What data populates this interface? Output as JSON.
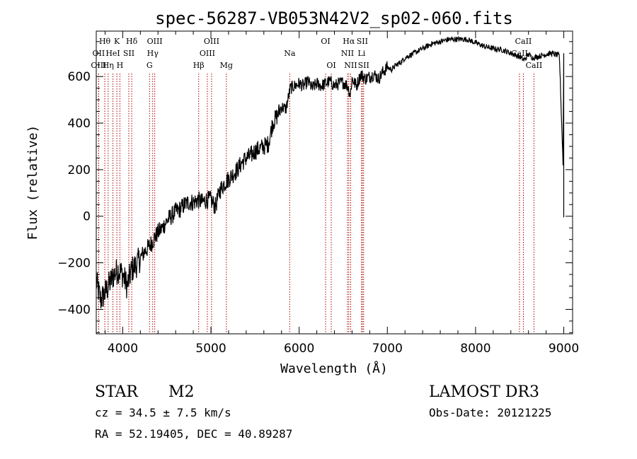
{
  "chart_data": {
    "type": "line",
    "title": "spec-56287-VB053N42V2_sp02-060.fits",
    "xlabel": "Wavelength (Å)",
    "ylabel": "Flux (relative)",
    "xlim": [
      3700,
      9100
    ],
    "ylim": [
      -505,
      795
    ],
    "x_ticks": [
      4000,
      5000,
      6000,
      7000,
      8000,
      9000
    ],
    "y_ticks": [
      -400,
      -200,
      0,
      200,
      400,
      600
    ],
    "series": [
      {
        "name": "spectrum",
        "x": [
          3700,
          3750,
          3800,
          3850,
          3900,
          3950,
          4000,
          4050,
          4100,
          4150,
          4200,
          4250,
          4300,
          4350,
          4400,
          4450,
          4500,
          4550,
          4600,
          4650,
          4700,
          4750,
          4800,
          4850,
          4900,
          4950,
          5000,
          5050,
          5100,
          5150,
          5200,
          5250,
          5300,
          5350,
          5400,
          5450,
          5500,
          5550,
          5600,
          5650,
          5700,
          5750,
          5800,
          5850,
          5900,
          5950,
          6000,
          6050,
          6100,
          6150,
          6200,
          6250,
          6300,
          6350,
          6400,
          6450,
          6500,
          6550,
          6580,
          6600,
          6650,
          6700,
          6750,
          6800,
          6850,
          6900,
          6950,
          7000,
          7050,
          7100,
          7150,
          7200,
          7300,
          7400,
          7500,
          7600,
          7700,
          7800,
          7900,
          8000,
          8100,
          8200,
          8300,
          8400,
          8500,
          8550,
          8600,
          8650,
          8700,
          8750,
          8800,
          8850,
          8900,
          8950,
          9000
        ],
        "y": [
          -280,
          -360,
          -330,
          -290,
          -250,
          -230,
          -250,
          -300,
          -230,
          -210,
          -180,
          -150,
          -130,
          -100,
          -70,
          -50,
          -20,
          0,
          20,
          30,
          50,
          60,
          60,
          70,
          60,
          70,
          70,
          40,
          110,
          140,
          160,
          180,
          200,
          230,
          250,
          260,
          280,
          290,
          300,
          310,
          400,
          430,
          470,
          460,
          550,
          560,
          570,
          560,
          580,
          550,
          570,
          560,
          570,
          580,
          560,
          570,
          575,
          560,
          520,
          590,
          560,
          610,
          590,
          600,
          610,
          590,
          620,
          640,
          630,
          650,
          660,
          680,
          700,
          720,
          740,
          750,
          760,
          760,
          760,
          745,
          730,
          720,
          715,
          700,
          685,
          670,
          695,
          680,
          685,
          690,
          695,
          700,
          695,
          690,
          140
        ]
      }
    ],
    "line_markers": [
      {
        "label": "Hθ",
        "x": 3797,
        "row": 0
      },
      {
        "label": "K",
        "x": 3934,
        "row": 0
      },
      {
        "label": "Hδ",
        "x": 4102,
        "row": 0
      },
      {
        "label": "OII",
        "x": 3727,
        "row": 1
      },
      {
        "label": "HeI",
        "x": 3889,
        "row": 1
      },
      {
        "label": "SII",
        "x": 4069,
        "row": 1
      },
      {
        "label": "OIII",
        "x": 3727,
        "row": 2
      },
      {
        "label": "Hη",
        "x": 3835,
        "row": 2
      },
      {
        "label": "H",
        "x": 3968,
        "row": 2
      },
      {
        "label": "OIII",
        "x": 4363,
        "row": 0
      },
      {
        "label": "Hγ",
        "x": 4340,
        "row": 1
      },
      {
        "label": "G",
        "x": 4304,
        "row": 2
      },
      {
        "label": "OIII",
        "x": 5007,
        "row": 0
      },
      {
        "label": "OIII",
        "x": 4959,
        "row": 1
      },
      {
        "label": "Hβ",
        "x": 4861,
        "row": 2
      },
      {
        "label": "Mg",
        "x": 5175,
        "row": 2
      },
      {
        "label": "Na",
        "x": 5893,
        "row": 1
      },
      {
        "label": "OI",
        "x": 6300,
        "row": 0
      },
      {
        "label": "OI",
        "x": 6364,
        "row": 2
      },
      {
        "label": "Hα",
        "x": 6563,
        "row": 0
      },
      {
        "label": "SII",
        "x": 6716,
        "row": 0
      },
      {
        "label": "NII",
        "x": 6548,
        "row": 1
      },
      {
        "label": "Li",
        "x": 6708,
        "row": 1
      },
      {
        "label": "NII",
        "x": 6584,
        "row": 2
      },
      {
        "label": "SII",
        "x": 6731,
        "row": 2
      },
      {
        "label": "CaII",
        "x": 8542,
        "row": 0
      },
      {
        "label": "CaII",
        "x": 8498,
        "row": 1
      },
      {
        "label": "CaII",
        "x": 8662,
        "row": 2
      }
    ]
  },
  "info": {
    "class": "STAR",
    "subclass": "M2",
    "survey": "LAMOST DR3",
    "cz": "cz = 34.5 ± 7.5 km/s",
    "obs_date": "Obs-Date: 20121225",
    "coords": "RA =  52.19405, DEC =  40.89287"
  }
}
